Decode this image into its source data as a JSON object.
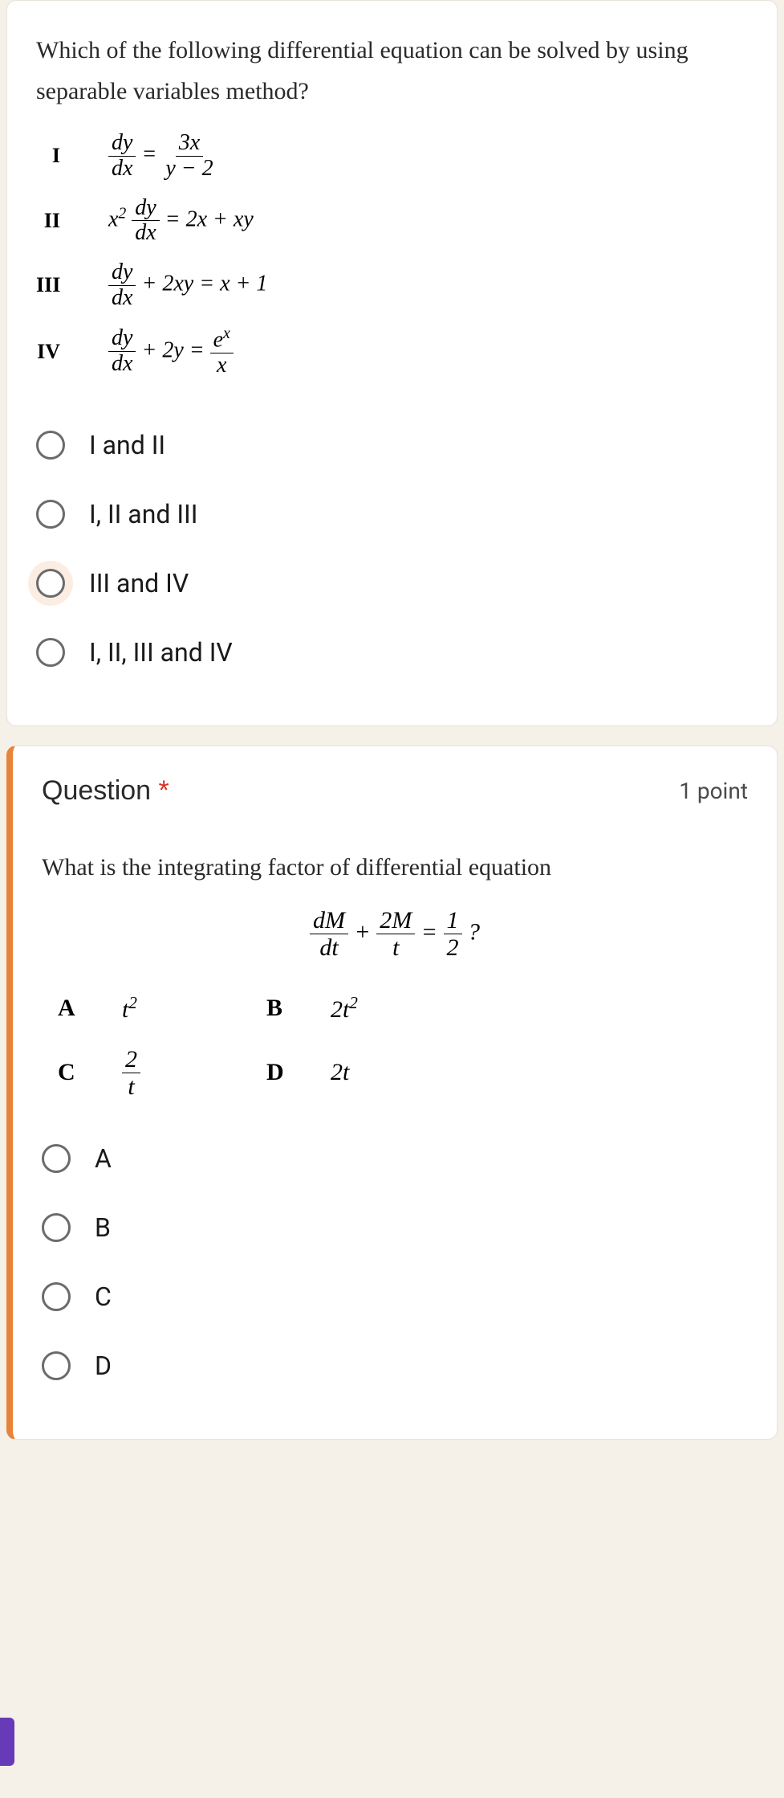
{
  "card1": {
    "question": "Which of the following differential equation can be solved by using separable variables method?",
    "equations": [
      {
        "label": "I",
        "num1": "dy",
        "den1": "dx",
        "eq": "=",
        "num2": "3x",
        "den2": "y − 2"
      },
      {
        "label": "II",
        "pre": "x",
        "sup": "2",
        "num1": "dy",
        "den1": "dx",
        "rhs": "= 2x + xy"
      },
      {
        "label": "III",
        "num1": "dy",
        "den1": "dx",
        "rhs": "+ 2xy = x + 1"
      },
      {
        "label": "IV",
        "num1": "dy",
        "den1": "dx",
        "mid": "+ 2y =",
        "num2": "e",
        "sup2": "x",
        "den2": "x"
      }
    ],
    "options": [
      {
        "label": "I and II",
        "highlighted": false
      },
      {
        "label": "I, II and III",
        "highlighted": false
      },
      {
        "label": "III and IV",
        "highlighted": true
      },
      {
        "label": "I, II, III and IV",
        "highlighted": false
      }
    ]
  },
  "card2": {
    "title": "Question",
    "required": "*",
    "points": "1 point",
    "question": "What is the integrating factor of differential equation",
    "eq": {
      "num1": "dM",
      "den1": "dt",
      "plus": "+",
      "num2": "2M",
      "den2": "t",
      "eq": "=",
      "num3": "1",
      "den3": "2",
      "q": "?"
    },
    "answers": {
      "A": {
        "html": "t<sup>2</sup>"
      },
      "B": {
        "html": "2t<sup>2</sup>"
      },
      "C": {
        "frac": {
          "num": "2",
          "den": "t"
        }
      },
      "D": {
        "html": "2t"
      }
    },
    "options": [
      "A",
      "B",
      "C",
      "D"
    ]
  },
  "colors": {
    "accent": "#e8833a",
    "background": "#f5f0e8",
    "card": "#ffffff",
    "text": "#2a2a2a",
    "required": "#d93025",
    "purple": "#673ab7"
  }
}
